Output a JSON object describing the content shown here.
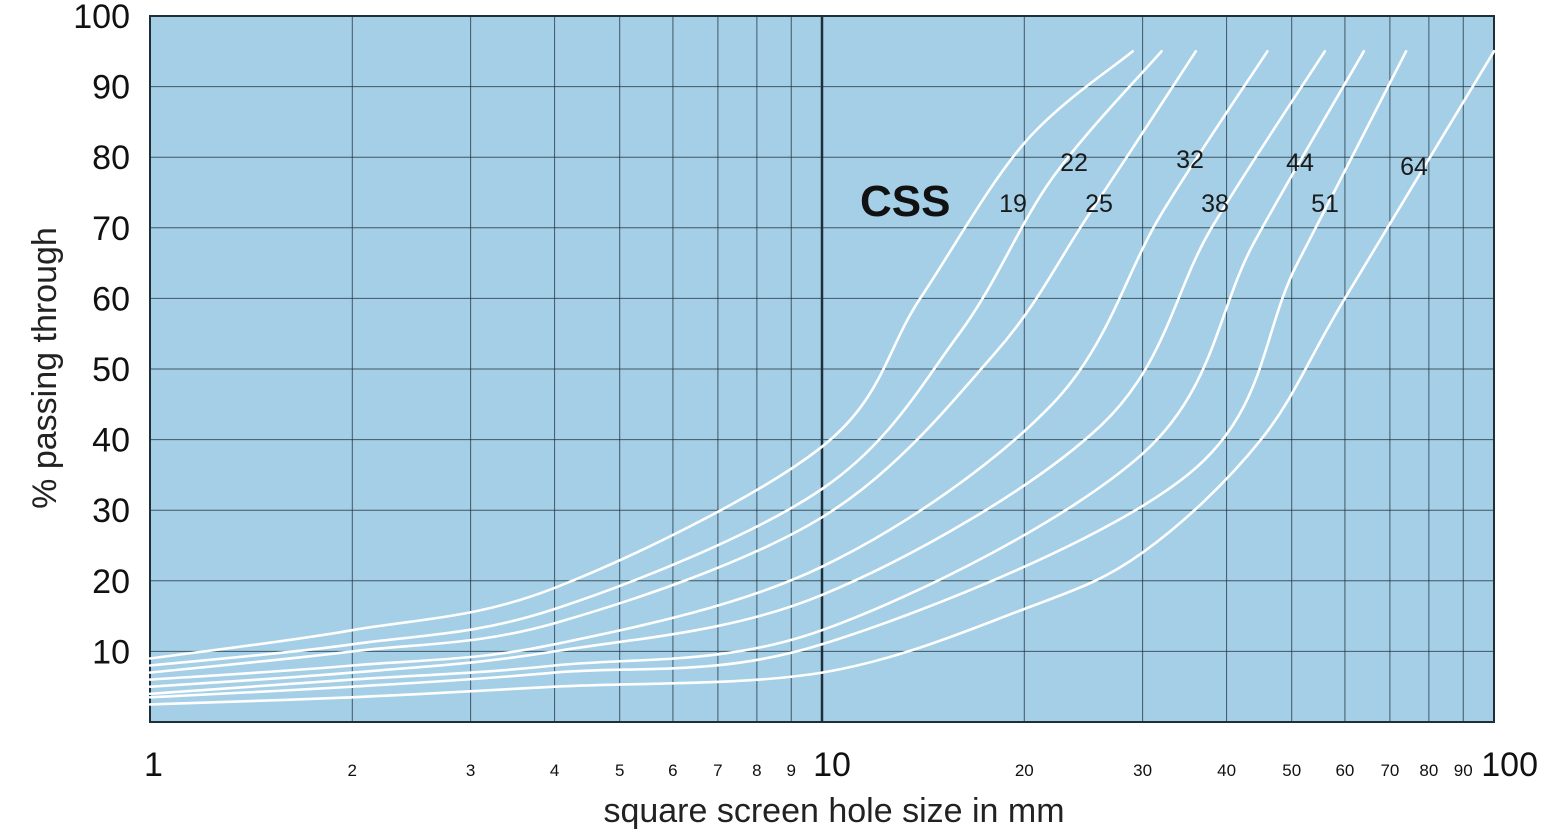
{
  "chart_data": {
    "type": "line",
    "title": "",
    "xlabel": "square screen hole size in mm",
    "ylabel": "% passing through",
    "x_scale": "log",
    "xlim": [
      1,
      100
    ],
    "ylim": [
      0,
      100
    ],
    "grid": true,
    "x_tick_labels": [
      "1",
      "2",
      "3",
      "4",
      "5",
      "6",
      "7",
      "8",
      "9",
      "10",
      "20",
      "30",
      "40",
      "50",
      "60",
      "70",
      "80",
      "90",
      "100"
    ],
    "y_tick_labels": [
      "10",
      "20",
      "30",
      "40",
      "50",
      "60",
      "70",
      "80",
      "90",
      "100"
    ],
    "group_label": "CSS",
    "colors": {
      "plot_background": "#a4cfe7",
      "grid": "#1f2f3a",
      "curve": "#ffffff"
    },
    "series": [
      {
        "name": "19",
        "x": [
          1,
          2,
          4,
          10,
          14,
          20,
          29
        ],
        "y": [
          9,
          13,
          19,
          39,
          60,
          82,
          95
        ]
      },
      {
        "name": "22",
        "x": [
          1,
          2,
          4,
          10,
          16,
          22,
          32
        ],
        "y": [
          8,
          11,
          16,
          33,
          55,
          77,
          95
        ]
      },
      {
        "name": "25",
        "x": [
          1,
          2,
          4,
          10,
          18,
          25,
          36
        ],
        "y": [
          7,
          10,
          14,
          29,
          52,
          72,
          95
        ]
      },
      {
        "name": "32",
        "x": [
          1,
          2,
          4,
          10,
          22,
          32,
          46
        ],
        "y": [
          6,
          8,
          11,
          22,
          45,
          72,
          95
        ]
      },
      {
        "name": "38",
        "x": [
          1,
          2,
          4,
          10,
          26,
          38,
          56
        ],
        "y": [
          5,
          7,
          10,
          18,
          42,
          70,
          95
        ]
      },
      {
        "name": "44",
        "x": [
          1,
          2,
          4,
          10,
          30,
          44,
          64
        ],
        "y": [
          4,
          6,
          8,
          13,
          38,
          68,
          95
        ]
      },
      {
        "name": "51",
        "x": [
          1,
          2,
          4,
          10,
          35,
          51,
          74
        ],
        "y": [
          3.5,
          5,
          7,
          11,
          35,
          65,
          95
        ]
      },
      {
        "name": "64",
        "x": [
          1,
          2,
          4,
          10,
          20,
          30,
          45,
          60,
          100
        ],
        "y": [
          2.5,
          3.5,
          5,
          7,
          16,
          24,
          40,
          60,
          95
        ]
      }
    ]
  }
}
